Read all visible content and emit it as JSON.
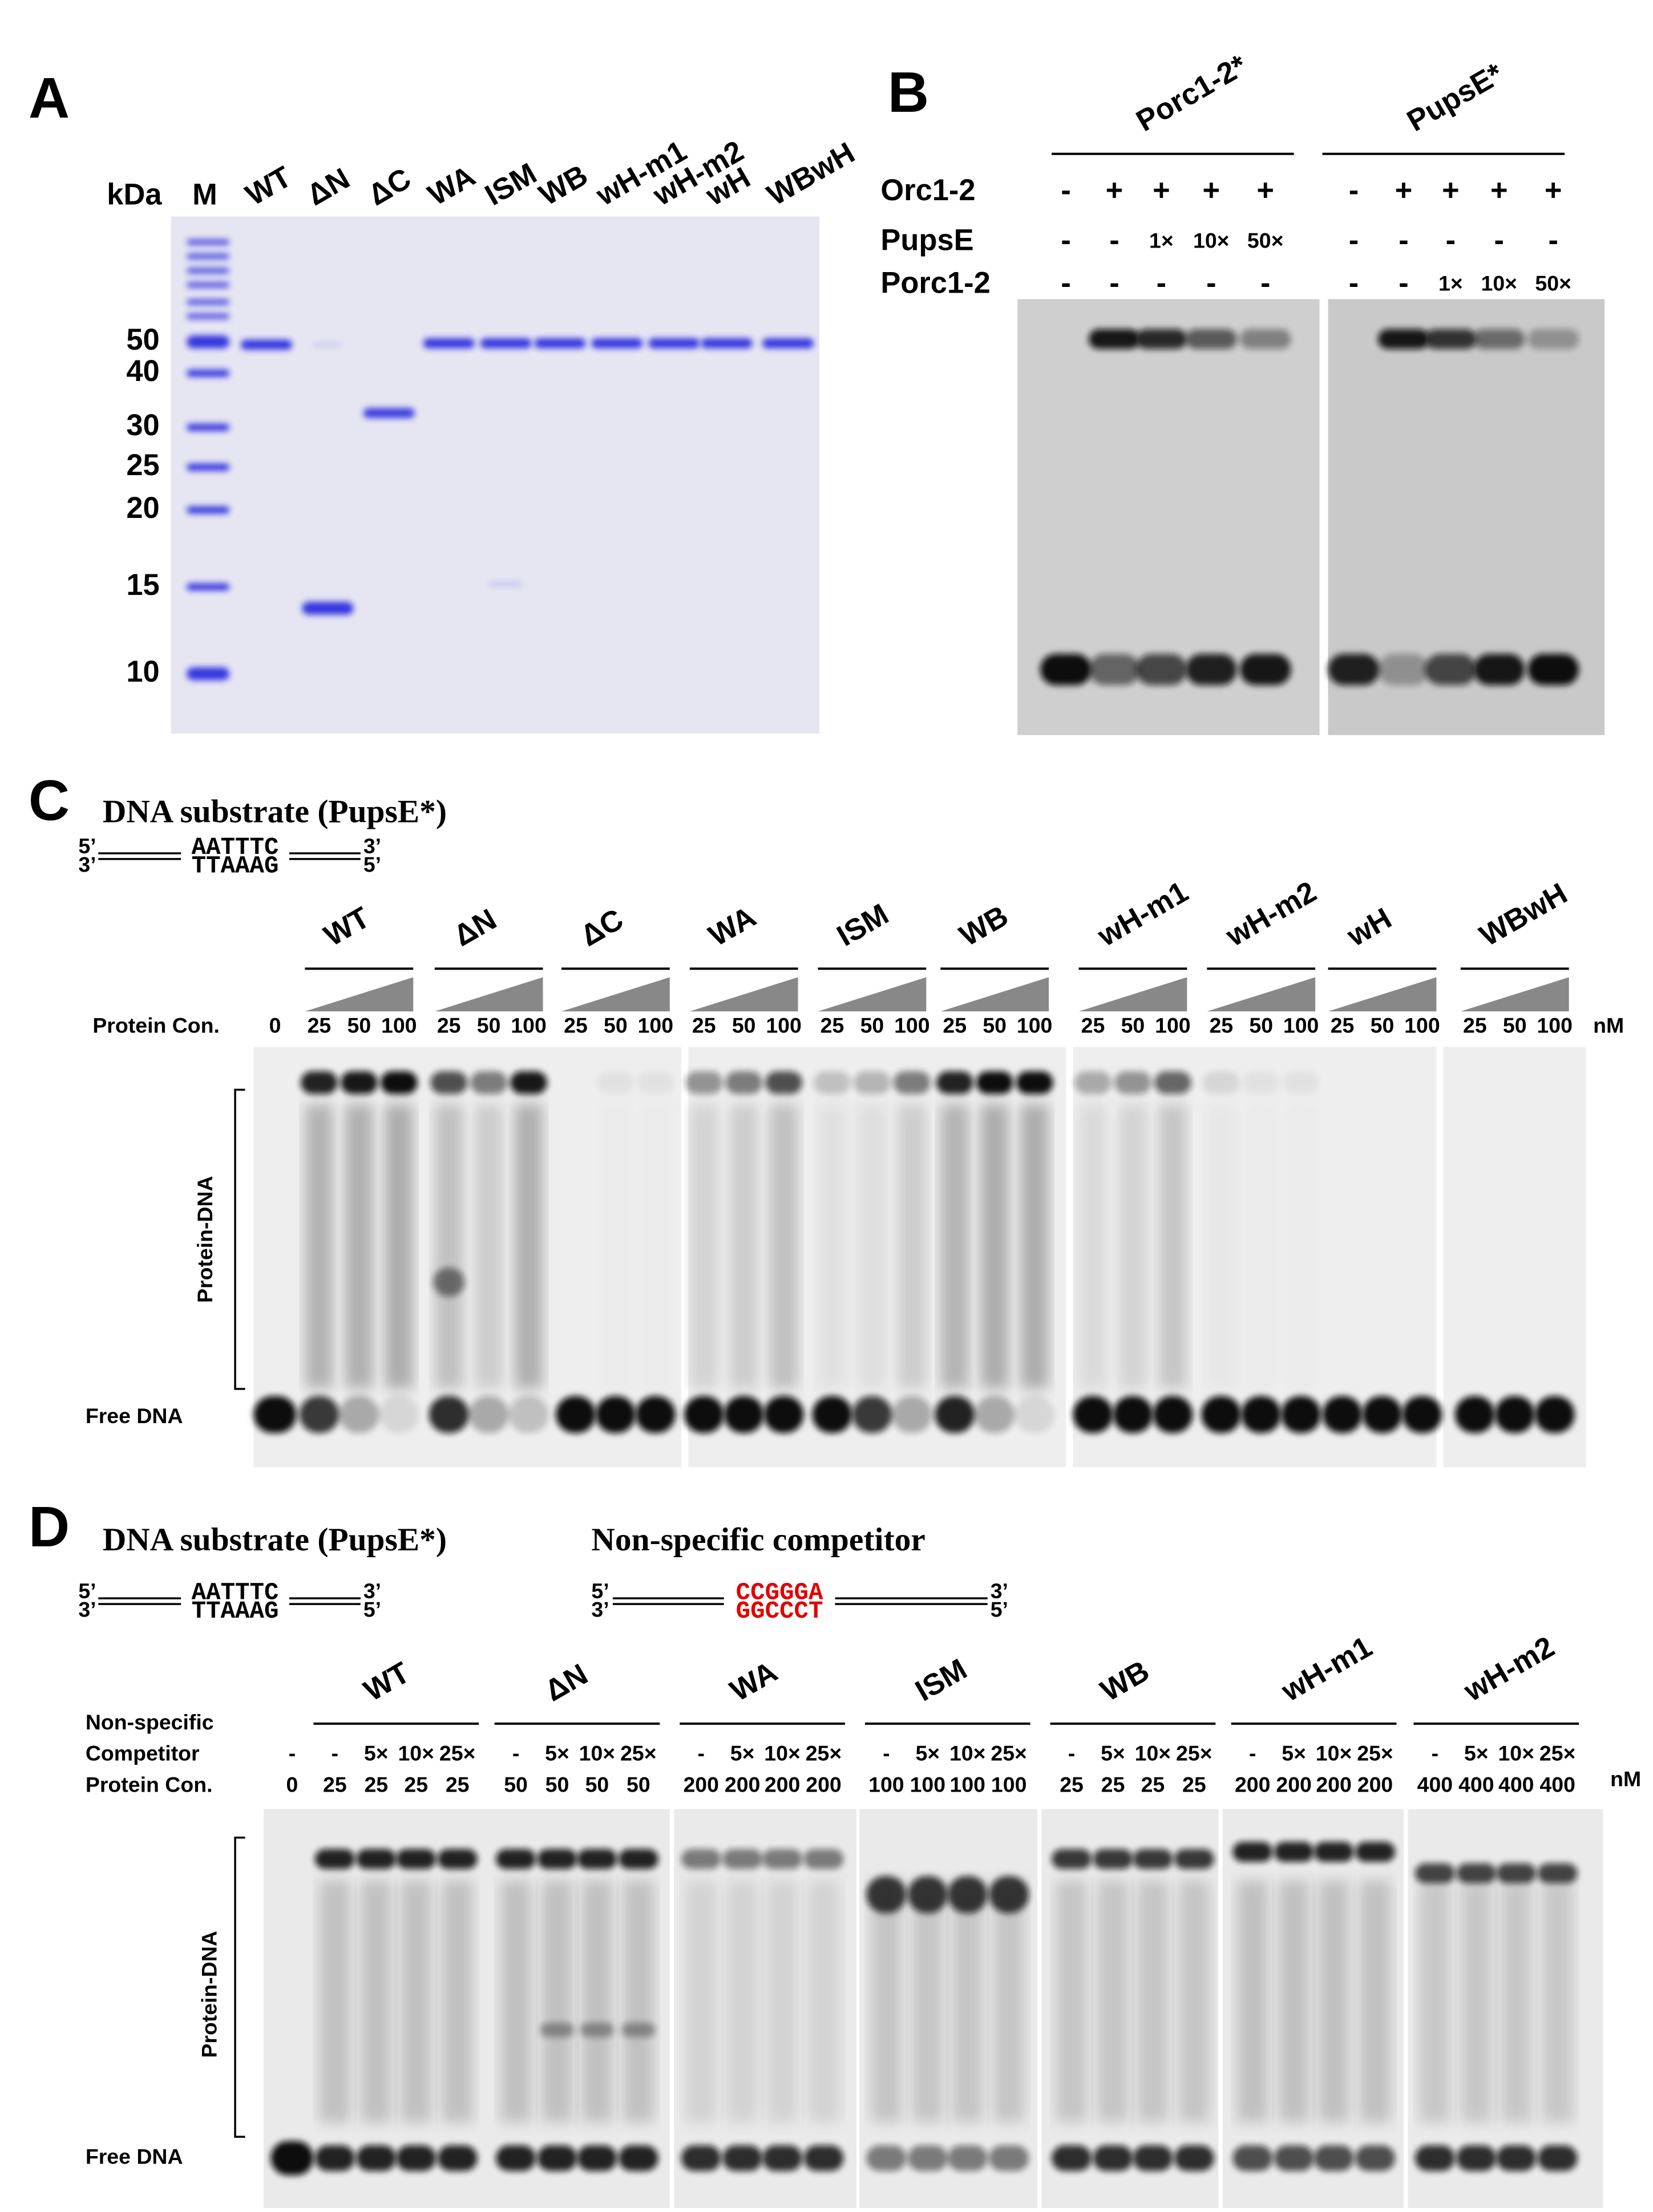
{
  "panel_a": {
    "label": "A",
    "unit": "kDa",
    "marker_lane": "M",
    "lanes": [
      "WT",
      "ΔN",
      "ΔC",
      "WA",
      "ISM",
      "WB",
      "wH-m1",
      "wH-m2",
      "wH",
      "WBwH"
    ],
    "markers": [
      "50",
      "40",
      "30",
      "25",
      "20",
      "15",
      "10"
    ]
  },
  "panel_b": {
    "label": "B",
    "probes": [
      "Porc1-2*",
      "PupsE*"
    ],
    "rows": [
      {
        "name": "Orc1-2",
        "cells": [
          "-",
          "+",
          "+",
          "+",
          "+",
          "-",
          "+",
          "+",
          "+",
          "+"
        ]
      },
      {
        "name": "PupsE",
        "cells": [
          "-",
          "-",
          "1×",
          "10×",
          "50×",
          "-",
          "-",
          "-",
          "-",
          "-"
        ]
      },
      {
        "name": "Porc1-2",
        "cells": [
          "-",
          "-",
          "-",
          "-",
          "-",
          "-",
          "-",
          "1×",
          "10×",
          "50×"
        ]
      }
    ]
  },
  "panel_c": {
    "label": "C",
    "substrate_title": "DNA substrate (PupsE*)",
    "strand_top": [
      "5’",
      "AATTTC",
      "3’"
    ],
    "strand_bottom": [
      "3’",
      "TTAAAG",
      "5’"
    ],
    "groups": [
      "WT",
      "ΔN",
      "ΔC",
      "WA",
      "ISM",
      "WB",
      "wH-m1",
      "wH-m2",
      "wH",
      "WBwH"
    ],
    "row_label": "Protein Con.",
    "zero": "0",
    "concentrations": [
      "25",
      "50",
      "100"
    ],
    "unit": "nM",
    "complex_label": "Protein-DNA",
    "free_label": "Free DNA"
  },
  "panel_d": {
    "label": "D",
    "substrate_title": "DNA substrate (PupsE*)",
    "strand_top": [
      "5’",
      "AATTTC",
      "3’"
    ],
    "strand_bottom": [
      "3’",
      "TTAAAG",
      "5’"
    ],
    "competitor_title": "Non-specific competitor",
    "competitor_top": [
      "5’",
      "CCGGGA",
      "3’"
    ],
    "competitor_bottom": [
      "3’",
      "GGCCCT",
      "5’"
    ],
    "competitor_label": [
      "Non-specific",
      "Competitor"
    ],
    "protein_label": "Protein Con.",
    "zero_competitor": "-",
    "zero_protein": "0",
    "unit": "nM",
    "groups": [
      {
        "name": "WT",
        "competitor": [
          "-",
          "5×",
          "10×",
          "25×"
        ],
        "protein": [
          "25",
          "25",
          "25",
          "25"
        ]
      },
      {
        "name": "ΔN",
        "competitor": [
          "-",
          "5×",
          "10×",
          "25×"
        ],
        "protein": [
          "50",
          "50",
          "50",
          "50"
        ]
      },
      {
        "name": "WA",
        "competitor": [
          "-",
          "5×",
          "10×",
          "25×"
        ],
        "protein": [
          "200",
          "200",
          "200",
          "200"
        ]
      },
      {
        "name": "ISM",
        "competitor": [
          "-",
          "5×",
          "10×",
          "25×"
        ],
        "protein": [
          "100",
          "100",
          "100",
          "100"
        ]
      },
      {
        "name": "WB",
        "competitor": [
          "-",
          "5×",
          "10×",
          "25×"
        ],
        "protein": [
          "25",
          "25",
          "25",
          "25"
        ]
      },
      {
        "name": "wH-m1",
        "competitor": [
          "-",
          "5×",
          "10×",
          "25×"
        ],
        "protein": [
          "200",
          "200",
          "200",
          "200"
        ]
      },
      {
        "name": "wH-m2",
        "competitor": [
          "-",
          "5×",
          "10×",
          "25×"
        ],
        "protein": [
          "400",
          "400",
          "400",
          "400"
        ]
      }
    ],
    "complex_label": "Protein-DNA",
    "free_label": "Free DNA"
  }
}
